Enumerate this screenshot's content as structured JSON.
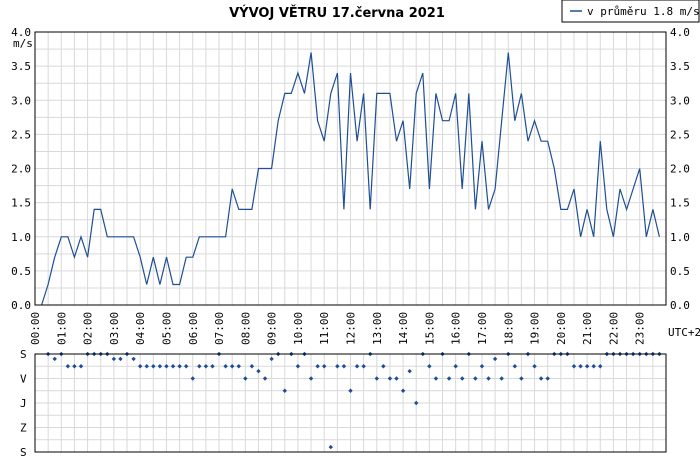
{
  "chart_data": [
    {
      "type": "line",
      "title": "VÝVOJ VĚTRU  17.června 2021",
      "ylabel": "m/s",
      "xlabel": "UTC+2",
      "ylim": [
        0,
        4.0
      ],
      "xlim_hours": [
        0,
        24
      ],
      "y_ticks": [
        "0.0",
        "0.5",
        "1.0",
        "1.5",
        "2.0",
        "2.5",
        "3.0",
        "3.5",
        "4.0"
      ],
      "x_ticks": [
        "00:00",
        "01:00",
        "02:00",
        "03:00",
        "04:00",
        "05:00",
        "06:00",
        "07:00",
        "08:00",
        "09:00",
        "10:00",
        "11:00",
        "12:00",
        "13:00",
        "14:00",
        "15:00",
        "16:00",
        "17:00",
        "18:00",
        "19:00",
        "20:00",
        "21:00",
        "22:00",
        "23:00"
      ],
      "grid": true,
      "legend": {
        "position": "top-right",
        "entries": [
          "v průměru 1.8 m/s"
        ]
      },
      "series": [
        {
          "name": "v průměru 1.8 m/s",
          "color": "#1f4e96",
          "x": [
            0.25,
            0.5,
            0.75,
            1.0,
            1.25,
            1.5,
            1.75,
            2.0,
            2.25,
            2.5,
            2.75,
            3.0,
            3.25,
            3.5,
            3.75,
            4.0,
            4.25,
            4.5,
            4.75,
            5.0,
            5.25,
            5.5,
            5.75,
            6.0,
            6.25,
            6.5,
            6.75,
            7.0,
            7.25,
            7.5,
            7.75,
            8.0,
            8.25,
            8.5,
            8.75,
            9.0,
            9.25,
            9.5,
            9.75,
            10.0,
            10.25,
            10.5,
            10.75,
            11.0,
            11.25,
            11.5,
            11.75,
            12.0,
            12.25,
            12.5,
            12.75,
            13.0,
            13.25,
            13.5,
            13.75,
            14.0,
            14.25,
            14.5,
            14.75,
            15.0,
            15.25,
            15.5,
            15.75,
            16.0,
            16.25,
            16.5,
            16.75,
            17.0,
            17.25,
            17.5,
            17.75,
            18.0,
            18.25,
            18.5,
            18.75,
            19.0,
            19.25,
            19.5,
            19.75,
            20.0,
            20.25,
            20.5,
            20.75,
            21.0,
            21.25,
            21.5,
            21.75,
            22.0,
            22.25,
            22.5,
            22.75,
            23.0,
            23.25,
            23.5,
            23.75
          ],
          "values": [
            0.0,
            0.3,
            0.7,
            1.0,
            1.0,
            0.7,
            1.0,
            0.7,
            1.4,
            1.4,
            1.0,
            1.0,
            1.0,
            1.0,
            1.0,
            0.7,
            0.3,
            0.7,
            0.3,
            0.7,
            0.3,
            0.3,
            0.7,
            0.7,
            1.0,
            1.0,
            1.0,
            1.0,
            1.0,
            1.7,
            1.4,
            1.4,
            1.4,
            2.0,
            2.0,
            2.0,
            2.7,
            3.1,
            3.1,
            3.4,
            3.1,
            3.7,
            2.7,
            2.4,
            3.1,
            3.4,
            1.4,
            3.4,
            2.4,
            3.1,
            1.4,
            3.1,
            3.1,
            3.1,
            2.4,
            2.7,
            1.7,
            3.1,
            3.4,
            1.7,
            3.1,
            2.7,
            2.7,
            3.1,
            1.7,
            3.1,
            1.4,
            2.4,
            1.4,
            1.7,
            2.7,
            3.7,
            2.7,
            3.1,
            2.4,
            2.7,
            2.4,
            2.4,
            2.0,
            1.4,
            1.4,
            1.7,
            1.0,
            1.4,
            1.0,
            2.4,
            1.4,
            1.0,
            1.7,
            1.4,
            1.7,
            2.0,
            1.0,
            1.4,
            1.0
          ]
        }
      ]
    },
    {
      "type": "scatter",
      "y_categories": [
        "S",
        "V",
        "J",
        "Z",
        "S"
      ],
      "grid": true,
      "series": [
        {
          "color": "#1f4e96",
          "x": [
            0.5,
            0.75,
            1.0,
            1.25,
            1.5,
            1.75,
            2.0,
            2.25,
            2.5,
            2.75,
            3.0,
            3.25,
            3.5,
            3.75,
            4.0,
            4.25,
            4.5,
            4.75,
            5.0,
            5.25,
            5.5,
            5.75,
            6.0,
            6.25,
            6.5,
            6.75,
            7.0,
            7.25,
            7.5,
            7.75,
            8.0,
            8.25,
            8.5,
            8.75,
            9.0,
            9.25,
            9.5,
            9.75,
            10.0,
            10.25,
            10.5,
            10.75,
            11.0,
            11.25,
            11.5,
            11.75,
            12.0,
            12.25,
            12.5,
            12.75,
            13.0,
            13.25,
            13.5,
            13.75,
            14.0,
            14.25,
            14.5,
            14.75,
            15.0,
            15.25,
            15.5,
            15.75,
            16.0,
            16.25,
            16.5,
            16.75,
            17.0,
            17.25,
            17.5,
            17.75,
            18.0,
            18.25,
            18.5,
            18.75,
            19.0,
            19.25,
            19.5,
            19.75,
            20.0,
            20.25,
            20.5,
            20.75,
            21.0,
            21.25,
            21.5,
            21.75,
            22.0,
            22.25,
            22.5,
            22.75,
            23.0,
            23.25,
            23.5,
            23.75
          ],
          "values": [
            0,
            0.2,
            0,
            0.5,
            0.5,
            0.5,
            0,
            0,
            0,
            0,
            0.2,
            0.2,
            0,
            0.2,
            0.5,
            0.5,
            0.5,
            0.5,
            0.5,
            0.5,
            0.5,
            0.5,
            1.0,
            0.5,
            0.5,
            0.5,
            0,
            0.5,
            0.5,
            0.5,
            1.0,
            0.5,
            0.7,
            1.0,
            0.2,
            0,
            1.5,
            0,
            0.5,
            0,
            1.0,
            0.5,
            0.5,
            3.8,
            0.5,
            0.5,
            1.5,
            0.5,
            0.5,
            0,
            1.0,
            0.5,
            1.0,
            1.0,
            1.5,
            0.7,
            2.0,
            0,
            0.5,
            1.0,
            0,
            1.0,
            0.5,
            1.0,
            0,
            1.0,
            0.5,
            1.0,
            0.2,
            1.0,
            0,
            0.5,
            1.0,
            0,
            0.5,
            1.0,
            1.0,
            0,
            0,
            0,
            0.5,
            0.5,
            0.5,
            0.5,
            0.5,
            0,
            0,
            0,
            0,
            0,
            0,
            0,
            0,
            0
          ]
        }
      ]
    }
  ]
}
